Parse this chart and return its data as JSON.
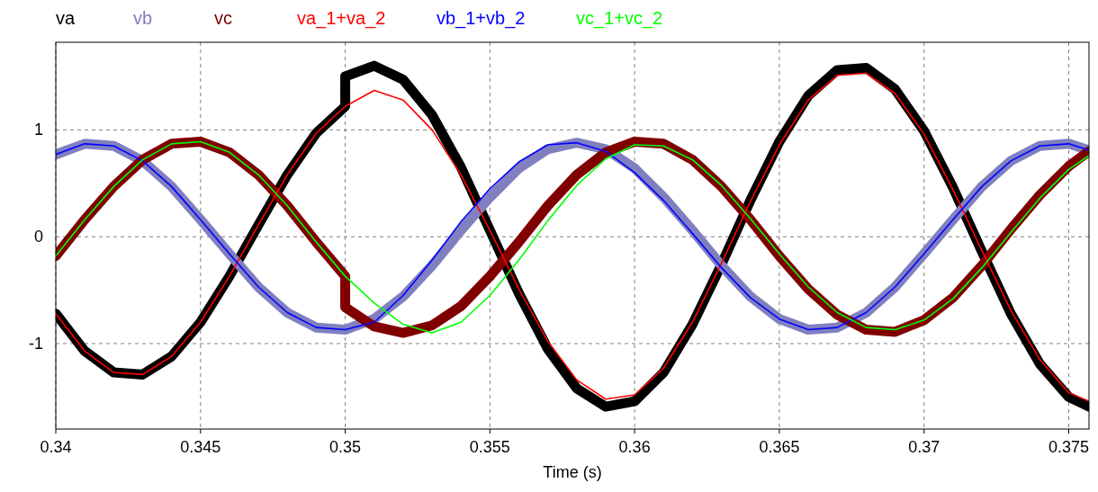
{
  "chart_data": {
    "type": "line",
    "xlabel": "Time (s)",
    "legend": "top",
    "grid": true,
    "line_style": "solid",
    "xlim": [
      0.34,
      0.3757
    ],
    "xticks": [
      0.34,
      0.345,
      0.35,
      0.355,
      0.36,
      0.365,
      0.37,
      0.375
    ],
    "ylim": [
      -1.8,
      1.82
    ],
    "yticks": [
      -1,
      0,
      1
    ],
    "x": [
      0.34,
      0.341,
      0.342,
      0.343,
      0.344,
      0.345,
      0.346,
      0.347,
      0.348,
      0.349,
      0.35,
      0.351,
      0.352,
      0.353,
      0.354,
      0.355,
      0.356,
      0.357,
      0.358,
      0.359,
      0.36,
      0.361,
      0.362,
      0.363,
      0.364,
      0.365,
      0.366,
      0.367,
      0.368,
      0.369,
      0.37,
      0.371,
      0.372,
      0.373,
      0.374,
      0.375,
      0.3757
    ],
    "series": [
      {
        "name": "va",
        "color": "#000000",
        "x": [
          0.34,
          0.341,
          0.342,
          0.343,
          0.344,
          0.345,
          0.346,
          0.347,
          0.348,
          0.349,
          0.35,
          0.35,
          0.351,
          0.352,
          0.353,
          0.354,
          0.355,
          0.356,
          0.357,
          0.358,
          0.359,
          0.36,
          0.361,
          0.362,
          0.363,
          0.364,
          0.365,
          0.366,
          0.367,
          0.368,
          0.369,
          0.37,
          0.371,
          0.372,
          0.373,
          0.374,
          0.375,
          0.3757
        ],
        "values": [
          -0.72,
          -1.07,
          -1.27,
          -1.29,
          -1.12,
          -0.8,
          -0.37,
          0.11,
          0.58,
          0.97,
          1.22,
          1.5,
          1.6,
          1.47,
          1.14,
          0.65,
          0.06,
          -0.53,
          -1.05,
          -1.42,
          -1.59,
          -1.54,
          -1.27,
          -0.82,
          -0.26,
          0.34,
          0.89,
          1.32,
          1.56,
          1.58,
          1.38,
          0.99,
          0.46,
          -0.14,
          -0.72,
          -1.19,
          -1.5,
          -1.59
        ]
      },
      {
        "name": "vb",
        "color": "#8080c0",
        "values": [
          0.77,
          0.87,
          0.85,
          0.71,
          0.47,
          0.16,
          -0.16,
          -0.47,
          -0.71,
          -0.85,
          -0.87,
          -0.77,
          -0.56,
          -0.27,
          0.06,
          0.37,
          0.64,
          0.82,
          0.88,
          0.82,
          0.64,
          0.37,
          0.06,
          -0.27,
          -0.56,
          -0.77,
          -0.87,
          -0.85,
          -0.71,
          -0.47,
          -0.16,
          0.16,
          0.47,
          0.71,
          0.85,
          0.87,
          0.81
        ]
      },
      {
        "name": "vc",
        "color": "#800000",
        "x": [
          0.34,
          0.341,
          0.342,
          0.343,
          0.344,
          0.345,
          0.346,
          0.347,
          0.348,
          0.349,
          0.35,
          0.35,
          0.351,
          0.352,
          0.353,
          0.354,
          0.355,
          0.356,
          0.357,
          0.358,
          0.359,
          0.36,
          0.361,
          0.362,
          0.363,
          0.364,
          0.365,
          0.366,
          0.367,
          0.368,
          0.369,
          0.37,
          0.371,
          0.372,
          0.373,
          0.374,
          0.375,
          0.3757
        ],
        "values": [
          -0.18,
          0.16,
          0.47,
          0.72,
          0.87,
          0.89,
          0.79,
          0.58,
          0.29,
          -0.05,
          -0.37,
          -0.66,
          -0.84,
          -0.9,
          -0.83,
          -0.65,
          -0.37,
          -0.05,
          0.29,
          0.58,
          0.79,
          0.89,
          0.87,
          0.72,
          0.47,
          0.16,
          -0.18,
          -0.49,
          -0.73,
          -0.87,
          -0.89,
          -0.78,
          -0.57,
          -0.27,
          0.07,
          0.39,
          0.66,
          0.8
        ]
      },
      {
        "name": "va_1+va_2",
        "color": "#ff0000",
        "values": [
          -0.72,
          -1.07,
          -1.27,
          -1.29,
          -1.12,
          -0.8,
          -0.37,
          0.11,
          0.58,
          0.97,
          1.22,
          1.37,
          1.28,
          1.0,
          0.58,
          0.06,
          -0.49,
          -0.98,
          -1.34,
          -1.52,
          -1.48,
          -1.23,
          -0.8,
          -0.25,
          0.33,
          0.86,
          1.28,
          1.51,
          1.53,
          1.34,
          0.96,
          0.44,
          -0.13,
          -0.69,
          -1.15,
          -1.46,
          -1.54
        ]
      },
      {
        "name": "vb_1+vb_2",
        "color": "#0000ff",
        "values": [
          0.77,
          0.87,
          0.85,
          0.71,
          0.47,
          0.16,
          -0.16,
          -0.47,
          -0.71,
          -0.85,
          -0.87,
          -0.8,
          -0.55,
          -0.22,
          0.14,
          0.45,
          0.7,
          0.86,
          0.88,
          0.8,
          0.6,
          0.34,
          0.03,
          -0.29,
          -0.57,
          -0.77,
          -0.87,
          -0.85,
          -0.71,
          -0.47,
          -0.16,
          0.16,
          0.47,
          0.71,
          0.85,
          0.87,
          0.81
        ]
      },
      {
        "name": "vc_1+vc_2",
        "color": "#00ff00",
        "values": [
          -0.18,
          0.16,
          0.47,
          0.72,
          0.87,
          0.89,
          0.79,
          0.58,
          0.29,
          -0.05,
          -0.37,
          -0.62,
          -0.82,
          -0.9,
          -0.8,
          -0.55,
          -0.22,
          0.15,
          0.48,
          0.73,
          0.86,
          0.85,
          0.72,
          0.48,
          0.17,
          -0.16,
          -0.47,
          -0.71,
          -0.85,
          -0.87,
          -0.78,
          -0.58,
          -0.29,
          0.04,
          0.36,
          0.63,
          0.76
        ]
      }
    ]
  }
}
